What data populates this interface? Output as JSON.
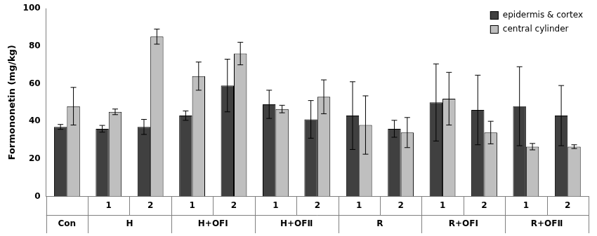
{
  "chart_data": {
    "type": "bar",
    "y_label": "Formononetin (mg/kg)",
    "categories": [
      {
        "label": null,
        "group": "Con"
      },
      {
        "label": "1",
        "group": "H"
      },
      {
        "label": "2",
        "group": "H"
      },
      {
        "label": "1",
        "group": "H+OFⅠ"
      },
      {
        "label": "2",
        "group": "H+OFⅠ"
      },
      {
        "label": "1",
        "group": "H+OFⅡ"
      },
      {
        "label": "2",
        "group": "H+OFⅡ"
      },
      {
        "label": "1",
        "group": "R"
      },
      {
        "label": "2",
        "group": "R"
      },
      {
        "label": "1",
        "group": "R+OFⅠ"
      },
      {
        "label": "2",
        "group": "R+OFⅠ"
      },
      {
        "label": "1",
        "group": "R+OFⅡ"
      },
      {
        "label": "2",
        "group": "R+OFⅡ"
      }
    ],
    "series": [
      {
        "name": "epidermis & cortex",
        "color": "#404040",
        "values": [
          37,
          36,
          37,
          43,
          59,
          49,
          41,
          43,
          36,
          50,
          46,
          48,
          43
        ],
        "errors": [
          1.3,
          1.8,
          4,
          2.5,
          14,
          7.5,
          10,
          18,
          4.5,
          20.5,
          18.5,
          21,
          16
        ]
      },
      {
        "name": "central cylinder",
        "color": "#bfbfbf",
        "values": [
          48,
          45,
          85,
          64,
          76,
          46.5,
          53,
          38,
          34,
          52,
          34,
          26.5,
          26.5
        ],
        "errors": [
          10,
          1.5,
          4,
          7.5,
          6,
          2,
          9,
          15.5,
          8,
          14,
          6,
          1.7,
          1
        ]
      }
    ],
    "ylim": [
      0,
      100
    ],
    "yticks": [
      0,
      20,
      40,
      60,
      80,
      100
    ],
    "grid": false,
    "legend": "upper right"
  }
}
